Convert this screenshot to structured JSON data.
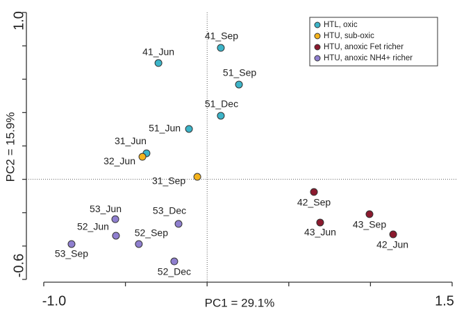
{
  "chart_data": {
    "type": "scatter",
    "xlabel": "PC1 = 29.1%",
    "ylabel": "PC2 = 15.9%",
    "xlim": [
      -1.0,
      1.5
    ],
    "ylim": [
      -0.6,
      1.0
    ],
    "xticks": [
      {
        "value": -1.0,
        "label": "-1.0"
      },
      1.5
    ],
    "yticks": [
      -0.6,
      {
        "value": 1.0,
        "label": "1.0"
      }
    ],
    "xminor_ticks": [
      -0.5,
      0,
      0.5,
      1.0
    ],
    "yminor_ticks": [
      -0.4,
      -0.2,
      0,
      0.2,
      0.4,
      0.6,
      0.8
    ],
    "reference_lines": {
      "x": 0,
      "y": 0
    },
    "legend": "top-right",
    "series": [
      {
        "name": "HTL, oxic",
        "color": "#3cb4c8",
        "x": [
          0.084,
          -0.298,
          0.195,
          0.084,
          -0.111,
          -0.371
        ],
        "y": [
          0.788,
          0.697,
          0.568,
          0.381,
          0.302,
          0.156
        ],
        "labels": [
          "41_Sep",
          "41_Jun",
          "51_Sep",
          "51_Dec",
          "51_Jun",
          "31_Jun"
        ]
      },
      {
        "name": "HTU, sub-oxic",
        "color": "#f5b31b",
        "x": [
          -0.396,
          -0.06
        ],
        "y": [
          0.135,
          0.015
        ],
        "labels": [
          "32_Jun",
          "31_Sep"
        ]
      },
      {
        "name": "HTU, anoxic Fet richer",
        "color": "#8b1a2e",
        "x": [
          0.654,
          0.692,
          0.994,
          1.139
        ],
        "y": [
          -0.076,
          -0.259,
          -0.209,
          -0.33
        ],
        "labels": [
          "42_Sep",
          "43_Jun",
          "43_Sep",
          "42_Jun"
        ]
      },
      {
        "name": "HTU, anoxic NH4+ richer",
        "color": "#8f7fcf",
        "x": [
          -0.562,
          -0.558,
          -0.83,
          -0.418,
          -0.175,
          -0.201
        ],
        "y": [
          -0.239,
          -0.338,
          -0.388,
          -0.388,
          -0.267,
          -0.492
        ],
        "labels": [
          "53_Jun",
          "52_Jun",
          "53_Sep",
          "52_Sep",
          "53_Dec",
          "52_Dec"
        ]
      }
    ]
  }
}
